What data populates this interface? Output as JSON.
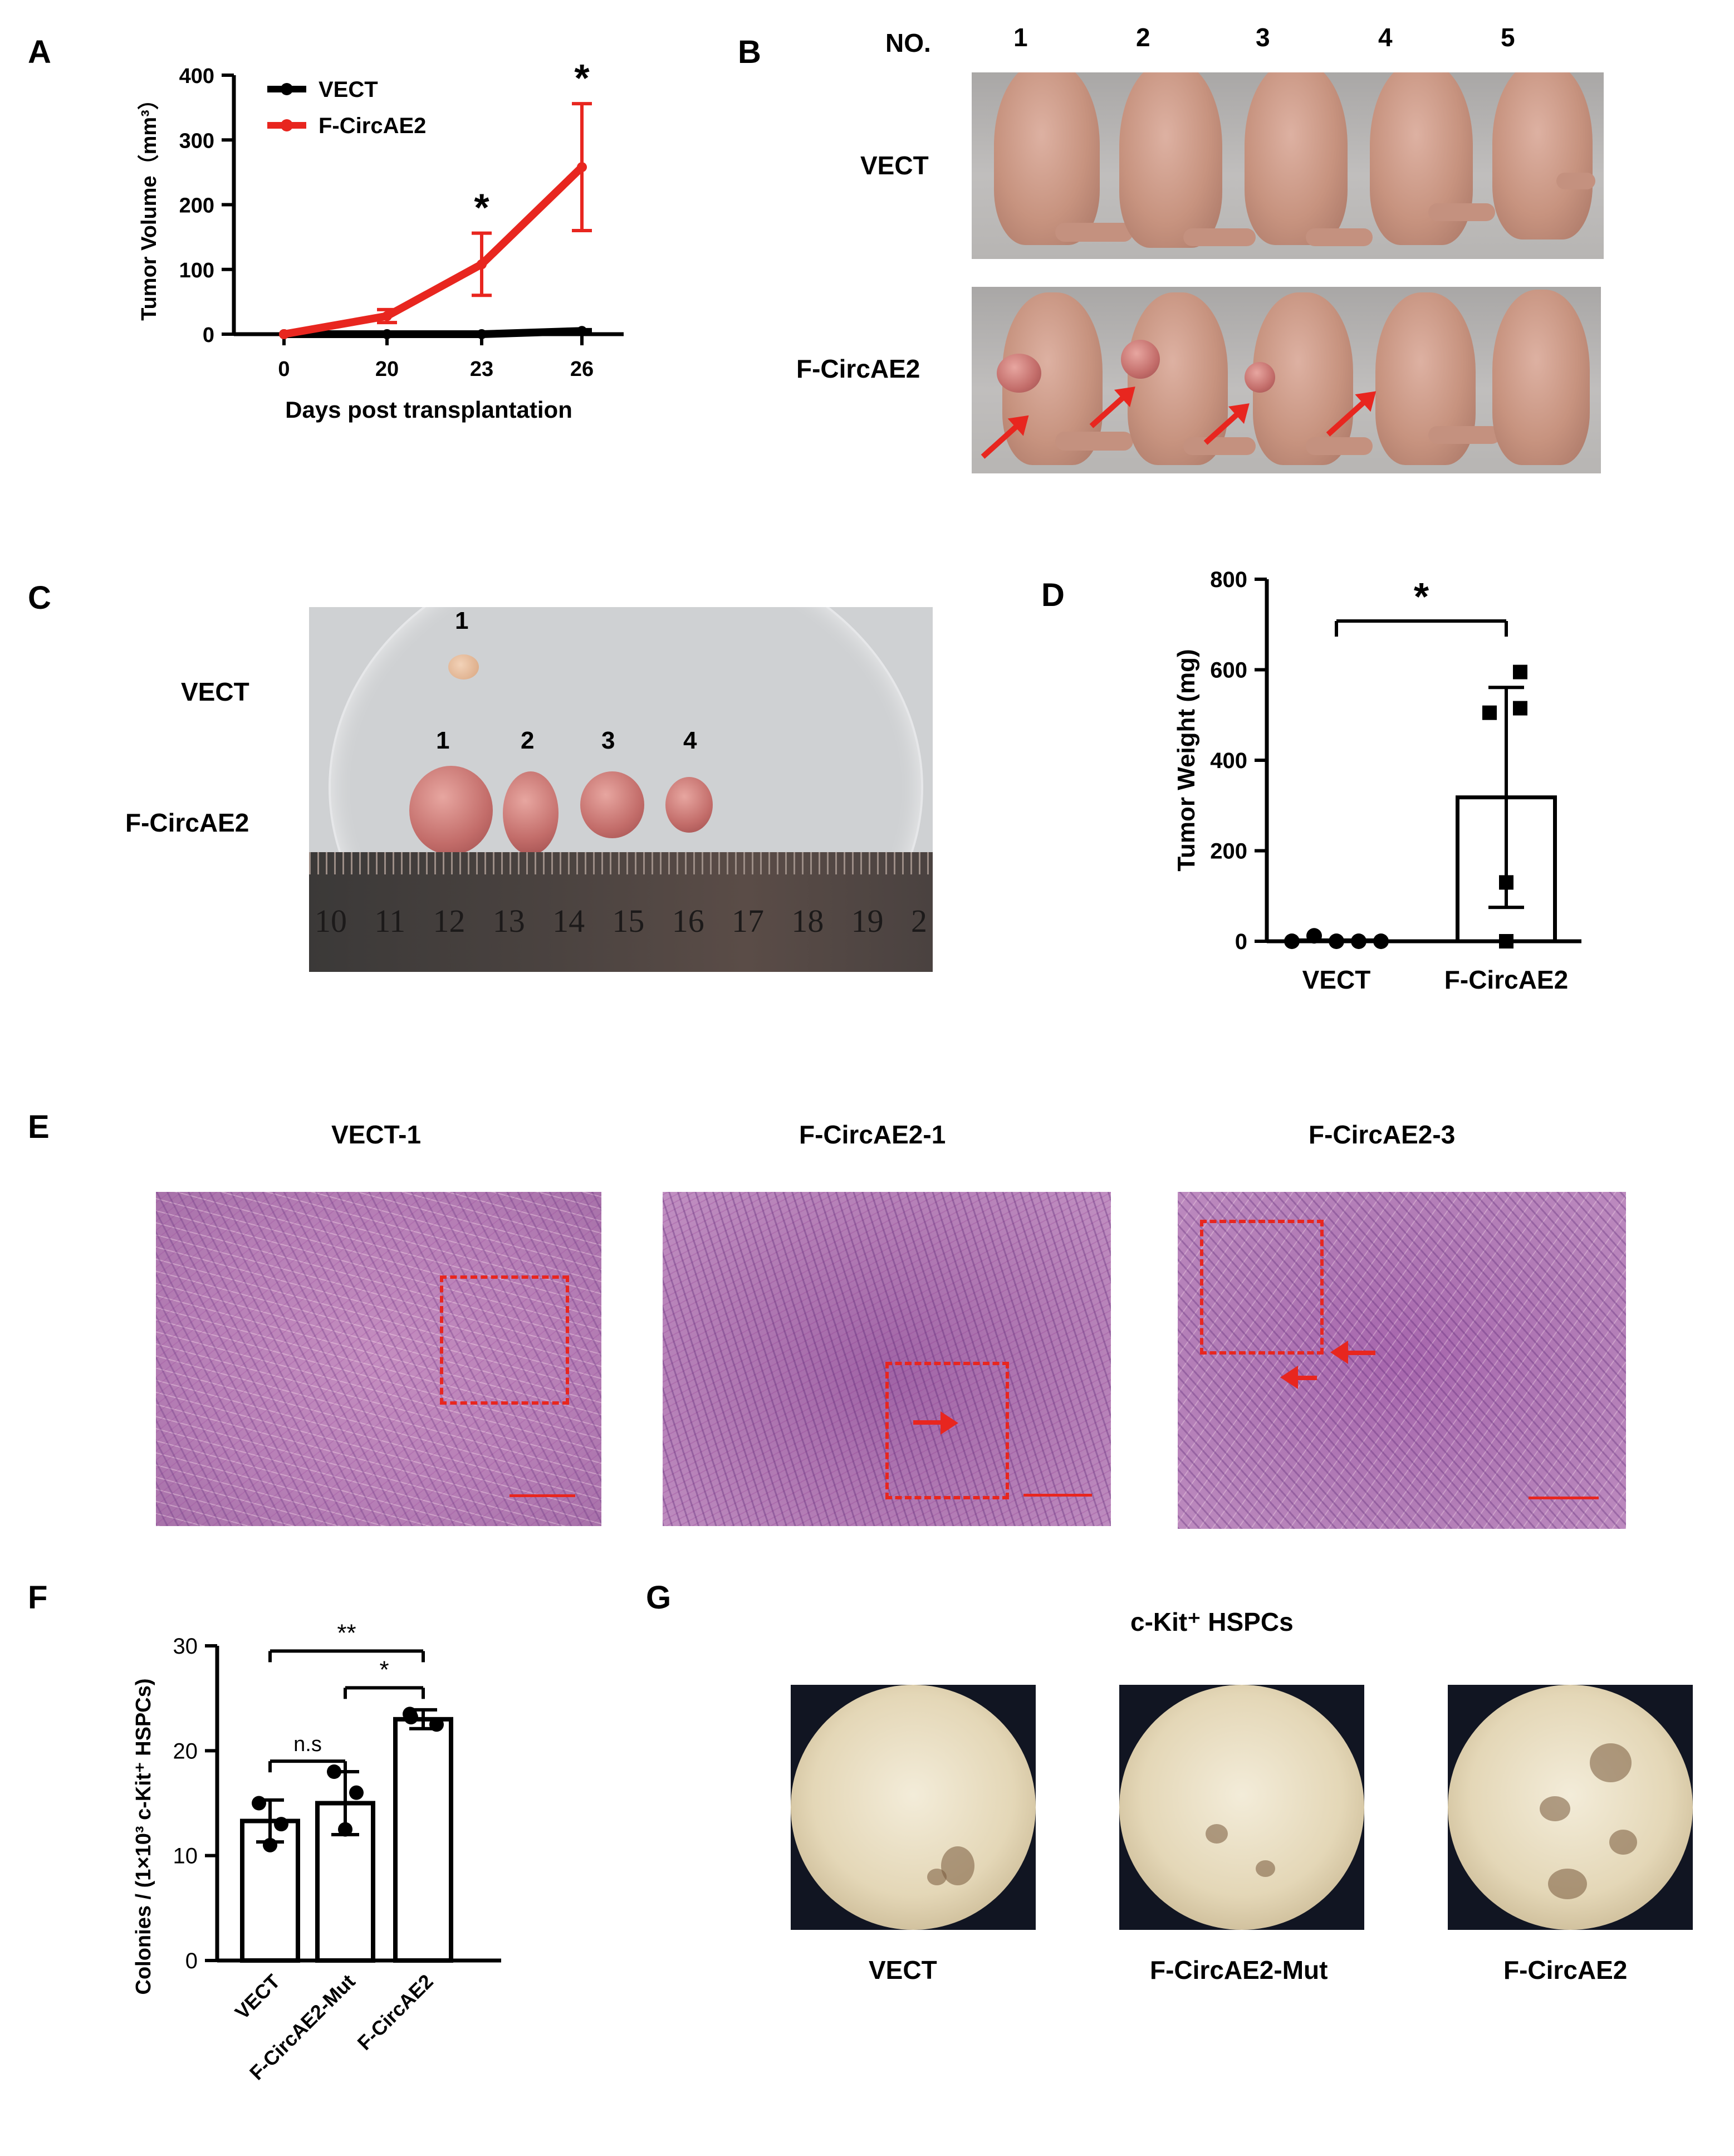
{
  "panels": {
    "a": "A",
    "b": "B",
    "c": "C",
    "d": "D",
    "e": "E",
    "f": "F",
    "g": "G"
  },
  "panel_b": {
    "no_label": "NO.",
    "numbers": [
      "1",
      "2",
      "3",
      "4",
      "5"
    ],
    "row_vect": "VECT",
    "row_f": "F-CircAE2"
  },
  "panel_c": {
    "row_vect": "VECT",
    "row_f": "F-CircAE2",
    "vect_tumor_labels": [
      "1"
    ],
    "f_tumor_labels": [
      "1",
      "2",
      "3",
      "4"
    ],
    "ruler_numbers": [
      "10",
      "11",
      "12",
      "13",
      "14",
      "15",
      "16",
      "17",
      "18",
      "19",
      "2"
    ]
  },
  "panel_e": {
    "titles": [
      "VECT-1",
      "F-CircAE2-1",
      "F-CircAE2-3"
    ]
  },
  "panel_g": {
    "title": "c-Kit⁺ HSPCs",
    "labels": [
      "VECT",
      "F-CircAE2-Mut",
      "F-CircAE2"
    ]
  },
  "colors": {
    "red": "#e8261f",
    "black": "#000000"
  },
  "chart_data": [
    {
      "id": "A",
      "type": "line",
      "x": [
        0,
        20,
        23,
        26
      ],
      "xlabel": "Days post transplantation",
      "ylabel": "Tumor Volume（mm³）",
      "ylim": [
        0,
        400
      ],
      "yticks": [
        0,
        100,
        200,
        300,
        400
      ],
      "legend_position": "top-left",
      "series": [
        {
          "name": "VECT",
          "color": "#000000",
          "values": [
            0,
            0,
            0,
            5
          ],
          "err": [
            0,
            0,
            0,
            2
          ]
        },
        {
          "name": "F-CircAE2",
          "color": "#e8261f",
          "values": [
            0,
            28,
            108,
            258
          ],
          "err": [
            0,
            10,
            48,
            98
          ]
        }
      ],
      "significance": [
        {
          "x": 23,
          "label": "*"
        },
        {
          "x": 26,
          "label": "*"
        }
      ]
    },
    {
      "id": "D",
      "type": "bar",
      "categories": [
        "VECT",
        "F-CircAE2"
      ],
      "values": [
        2,
        318
      ],
      "err": [
        2,
        243
      ],
      "points": [
        [
          0,
          12,
          0,
          0,
          0
        ],
        [
          595,
          505,
          515,
          130,
          0
        ]
      ],
      "ylabel": "Tumor Weight (mg)",
      "ylim": [
        0,
        800
      ],
      "yticks": [
        0,
        200,
        400,
        600,
        800
      ],
      "significance": [
        {
          "pair": [
            0,
            1
          ],
          "label": "*"
        }
      ]
    },
    {
      "id": "F",
      "type": "bar",
      "categories": [
        "VECT",
        "F-CircAE2-Mut",
        "F-CircAE2"
      ],
      "values": [
        13.3,
        15.0,
        23.0
      ],
      "err": [
        2.0,
        3.0,
        0.9
      ],
      "points": [
        [
          15,
          13,
          11
        ],
        [
          18,
          16,
          12.5
        ],
        [
          23.5,
          22.5,
          23.2
        ]
      ],
      "ylabel": "Colonies / (1×10³ c-Kit⁺ HSPCs)",
      "ylim": [
        0,
        30
      ],
      "yticks": [
        0,
        10,
        20,
        30
      ],
      "significance": [
        {
          "pair": [
            0,
            1
          ],
          "label": "n.s"
        },
        {
          "pair": [
            1,
            2
          ],
          "label": "*"
        },
        {
          "pair": [
            0,
            2
          ],
          "label": "**"
        }
      ]
    }
  ]
}
